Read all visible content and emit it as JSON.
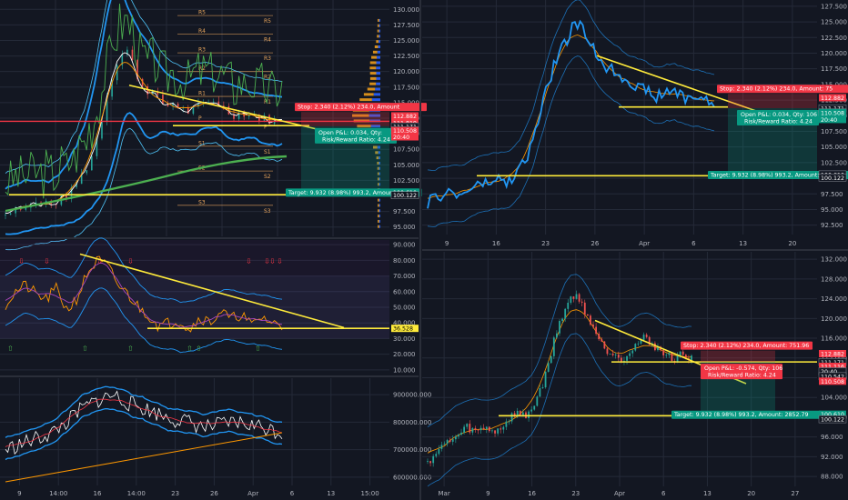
{
  "theme": {
    "bg": "#131722",
    "grid": "#242a38",
    "axis_text": "#b2b5be",
    "separator": "#2a2e39",
    "trend": "#ffeb3b",
    "band": "#2196f3",
    "band_fill": "#2196f3",
    "up": "#26a69a",
    "down": "#ef5350",
    "price_line": "#2196f3",
    "white": "#ffffff",
    "ma_orange": "#ff9800",
    "ma_green": "#4caf50",
    "stop_red": "#f23645",
    "target_teal": "#089981",
    "pivot": "#e8a55c",
    "vp_blue": "#2962ff",
    "vp_orange": "#f7a21b"
  },
  "chart_data": [
    {
      "type": "candlestick",
      "panel": "main-left",
      "y_ticks": [
        "130.000",
        "127.500",
        "125.000",
        "122.500",
        "120.000",
        "117.500",
        "115.000",
        "112.500",
        "110.000",
        "107.500",
        "105.000",
        "102.500",
        "100.000",
        "97.500",
        "95.000"
      ],
      "ylim": [
        93.5,
        131.5
      ],
      "x_ticks": [],
      "close_series": [
        97,
        98,
        98.5,
        98,
        99,
        98.5,
        99,
        98.5,
        99.5,
        100,
        101,
        103,
        104.5,
        107,
        111,
        116,
        120,
        122.5,
        123.5,
        121,
        118,
        117,
        116.5,
        115,
        114.5,
        115,
        114,
        113.5,
        114,
        114.5,
        115,
        115.5,
        114.5,
        113.5,
        113,
        113.5,
        113,
        112.8,
        112.5,
        112.3,
        112,
        111.9
      ],
      "pivots": {
        "labels": [
          "R5",
          "R4",
          "R3",
          "R2",
          "R1",
          "P",
          "S1",
          "S2",
          "S3"
        ],
        "values": [
          129,
          126,
          123,
          120,
          116,
          112,
          108,
          104,
          98.5
        ]
      },
      "price_tags": [
        {
          "label": "112.882",
          "value": 112.88,
          "color": "#f23645"
        },
        {
          "label": "111.819",
          "value": 111.8,
          "color": "#f23645"
        },
        {
          "label": "111.171",
          "value": 111.17,
          "color": "#131722"
        },
        {
          "label": "110.542",
          "value": 110.54,
          "color": "#131722"
        },
        {
          "label": "110.508",
          "value": 110.5,
          "color": "#f23645"
        },
        {
          "label": "20:40",
          "value": 109.5,
          "color": "#f23645"
        },
        {
          "label": "100.610",
          "value": 100.61,
          "color": "#089981"
        },
        {
          "label": "100.122",
          "value": 100.12,
          "color": "#131722"
        }
      ],
      "position": {
        "stop_label": "Stop: 2.340 (2.12%) 234.0, Amount",
        "pnl_label": "Open P&L: 0.034, Qty:",
        "rr_label": "Risk/Reward Ratio: 4.24",
        "target_label": "Target: 9.932 (8.98%) 993.2, Amount",
        "stop": 113.5,
        "entry": 111.2,
        "target": 100.6
      }
    },
    {
      "type": "line",
      "panel": "rsi-left",
      "y_ticks": [
        "90.000",
        "80.000",
        "70.000",
        "60.000",
        "50.000",
        "40.000",
        "30.000",
        "20.000",
        "10.000"
      ],
      "ylim": [
        7,
        93
      ],
      "last_value": {
        "label": "36.528",
        "value": 36.53
      }
    },
    {
      "type": "line",
      "panel": "volume-left",
      "y_ticks": [
        "900000.000",
        "800000.000",
        "700000.000",
        "600000.000"
      ],
      "ylim": [
        570000,
        960000
      ],
      "x_ticks": [
        "9",
        "14:00",
        "16",
        "14:00",
        "23",
        "26",
        "Apr",
        "6",
        "13",
        "15:00"
      ]
    },
    {
      "type": "line",
      "panel": "top-right",
      "y_ticks": [
        "127.500",
        "125.000",
        "122.500",
        "120.000",
        "117.500",
        "115.000",
        "112.500",
        "110.000",
        "107.500",
        "105.000",
        "102.500",
        "100.000",
        "97.500",
        "95.000",
        "92.500"
      ],
      "ylim": [
        91,
        128.5
      ],
      "x_ticks": [
        "9",
        "16",
        "23",
        "26",
        "Apr",
        "6",
        "13",
        "20"
      ],
      "price_tags": [
        {
          "label": "112.882",
          "value": 112.88,
          "color": "#f23645"
        },
        {
          "label": "111.171",
          "value": 111.17,
          "color": "#131722"
        },
        {
          "label": "110.542",
          "value": 110.54,
          "color": "#131722"
        },
        {
          "label": "110.508",
          "value": 110.5,
          "color": "#089981"
        },
        {
          "label": "20:40",
          "value": 109.4,
          "color": "#089981"
        },
        {
          "label": "100.610",
          "value": 100.61,
          "color": "#131722"
        },
        {
          "label": "100.122",
          "value": 100.12,
          "color": "#131722"
        }
      ],
      "position": {
        "stop_label": "Stop: 2.340 (2.12%) 234.0, Amount: 75",
        "pnl_label": "Open P&L: 0.034, Qty: 106",
        "rr_label": "Risk/Reward Ratio: 4.24",
        "target_label": "Target: 9.932 (8.98%) 993.2, Amount: 20"
      }
    },
    {
      "type": "candlestick",
      "panel": "bottom-right",
      "y_ticks": [
        "132.000",
        "128.000",
        "124.000",
        "120.000",
        "116.000",
        "112.000",
        "108.000",
        "104.000",
        "100.000",
        "96.000",
        "92.000",
        "88.000"
      ],
      "ylim": [
        86,
        133.5
      ],
      "x_ticks": [
        "Mar",
        "9",
        "16",
        "23",
        "Apr",
        "6",
        "13",
        "20",
        "27"
      ],
      "price_tags": [
        {
          "label": "112.882",
          "value": 112.88,
          "color": "#f23645"
        },
        {
          "label": "111.171",
          "value": 111.17,
          "color": "#131722"
        },
        {
          "label": "111.116",
          "value": 110.3,
          "color": "#f23645"
        },
        {
          "label": "20:40",
          "value": 109.3,
          "color": "#131722"
        },
        {
          "label": "110.542",
          "value": 108.3,
          "color": "#131722"
        },
        {
          "label": "110.508",
          "value": 107.3,
          "color": "#f23645"
        },
        {
          "label": "100.610",
          "value": 100.61,
          "color": "#089981"
        },
        {
          "label": "100.122",
          "value": 99.6,
          "color": "#131722"
        }
      ],
      "position": {
        "stop_label": "Stop: 2.340 (2.12%) 234.0, Amount: 751.96",
        "pnl_label": "Open P&L: -0.574, Qty: 106",
        "rr_label": "Risk/Reward Ratio: 4.24",
        "target_label": "Target: 9.932 (8.98%) 993.2, Amount: 2852.79"
      }
    }
  ]
}
